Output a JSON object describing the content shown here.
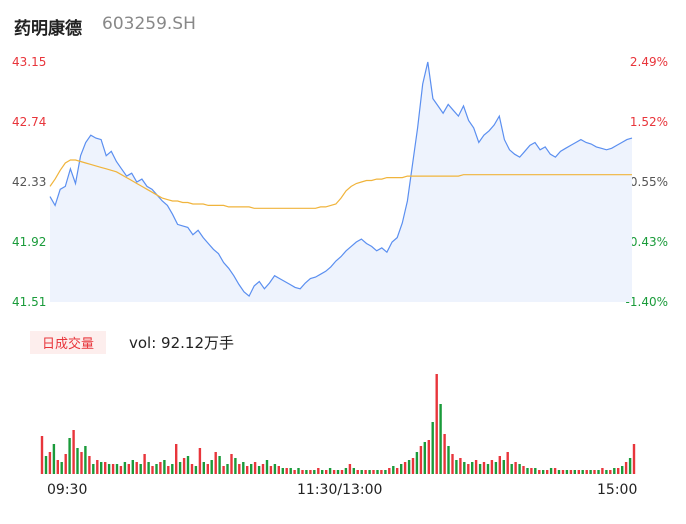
{
  "header": {
    "name": "药明康德",
    "code": "603259.SH"
  },
  "price_axis": {
    "ticks": [
      "43.15",
      "42.74",
      "42.33",
      "41.92",
      "41.51"
    ]
  },
  "pct_axis": {
    "ticks": [
      "2.49%",
      "1.52%",
      "0.55%",
      "-0.43%",
      "-1.40%"
    ]
  },
  "volume_panel": {
    "tag": "日成交量",
    "label": "vol: 92.12万手"
  },
  "time_axis": {
    "ticks": [
      "09:30",
      "11:30/13:00",
      "15:00"
    ]
  },
  "colors": {
    "price_line": "#5b8ff0",
    "avg_line": "#f0b43c",
    "up": "#e8353b",
    "down": "#1a9b3a",
    "area_fill": "#eef3fd"
  },
  "chart_data": [
    {
      "type": "line",
      "title": "",
      "ylim": [
        41.51,
        43.15
      ],
      "series": [
        {
          "name": "",
          "values": [
            42.23,
            42.17,
            42.28,
            42.3,
            42.42,
            42.32,
            42.51,
            42.6,
            42.65,
            42.63,
            42.62,
            42.51,
            42.54,
            42.47,
            42.42,
            42.37,
            42.39,
            42.33,
            42.35,
            42.3,
            42.28,
            42.24,
            42.2,
            42.17,
            42.11,
            42.04,
            42.03,
            42.02,
            41.97,
            42.0,
            41.95,
            41.91,
            41.87,
            41.84,
            41.78,
            41.74,
            41.69,
            41.63,
            41.58,
            41.55,
            41.62,
            41.65,
            41.6,
            41.64,
            41.69,
            41.67,
            41.65,
            41.63,
            41.61,
            41.6,
            41.64,
            41.67,
            41.68,
            41.7,
            41.72,
            41.75,
            41.79,
            41.82,
            41.86,
            41.89,
            41.92,
            41.94,
            41.91,
            41.89,
            41.86,
            41.88,
            41.85,
            41.92,
            41.95,
            42.05,
            42.2,
            42.45,
            42.7,
            43.0,
            43.15,
            42.9,
            42.85,
            42.8,
            42.86,
            42.82,
            42.78,
            42.85,
            42.75,
            42.7,
            42.6,
            42.65,
            42.68,
            42.72,
            42.78,
            42.62,
            42.55,
            42.52,
            42.5,
            42.54,
            42.58,
            42.6,
            42.55,
            42.57,
            42.52,
            42.5,
            42.54,
            42.56,
            42.58,
            42.6,
            42.62,
            42.6,
            42.59,
            42.57,
            42.56,
            42.55,
            42.56,
            42.58,
            42.6,
            42.62,
            42.63
          ]
        },
        {
          "name": "",
          "values": [
            42.3,
            42.35,
            42.41,
            42.46,
            42.48,
            42.48,
            42.47,
            42.46,
            42.45,
            42.44,
            42.43,
            42.42,
            42.41,
            42.4,
            42.38,
            42.36,
            42.34,
            42.32,
            42.3,
            42.28,
            42.26,
            42.24,
            42.22,
            42.21,
            42.2,
            42.2,
            42.19,
            42.19,
            42.18,
            42.18,
            42.18,
            42.17,
            42.17,
            42.17,
            42.17,
            42.16,
            42.16,
            42.16,
            42.16,
            42.16,
            42.15,
            42.15,
            42.15,
            42.15,
            42.15,
            42.15,
            42.15,
            42.15,
            42.15,
            42.15,
            42.15,
            42.15,
            42.15,
            42.16,
            42.16,
            42.17,
            42.18,
            42.22,
            42.27,
            42.3,
            42.32,
            42.33,
            42.34,
            42.34,
            42.35,
            42.35,
            42.36,
            42.36,
            42.36,
            42.36,
            42.37,
            42.37,
            42.37,
            42.37,
            42.37,
            42.37,
            42.37,
            42.37,
            42.37,
            42.37,
            42.37,
            42.38,
            42.38,
            42.38,
            42.38,
            42.38,
            42.38,
            42.38,
            42.38,
            42.38,
            42.38,
            42.38,
            42.38,
            42.38,
            42.38,
            42.38,
            42.38,
            42.38,
            42.38,
            42.38,
            42.38,
            42.38,
            42.38,
            42.38,
            42.38,
            42.38,
            42.38,
            42.38,
            42.38,
            42.38,
            42.38,
            42.38,
            42.38,
            42.38,
            42.38
          ]
        }
      ]
    },
    {
      "type": "bar",
      "title": "",
      "ylim": [
        0,
        100
      ],
      "values": [
        38,
        18,
        22,
        30,
        14,
        12,
        20,
        36,
        44,
        26,
        22,
        28,
        18,
        10,
        14,
        12,
        12,
        10,
        10,
        10,
        8,
        12,
        10,
        14,
        12,
        10,
        20,
        12,
        8,
        10,
        12,
        14,
        8,
        10,
        30,
        12,
        16,
        18,
        10,
        8,
        26,
        12,
        10,
        14,
        22,
        18,
        8,
        10,
        20,
        16,
        10,
        12,
        8,
        10,
        12,
        8,
        10,
        14,
        8,
        10,
        8,
        6,
        6,
        6,
        4,
        6,
        4,
        4,
        4,
        4,
        6,
        4,
        4,
        6,
        4,
        4,
        4,
        6,
        10,
        6,
        4,
        4,
        4,
        4,
        4,
        4,
        4,
        4,
        6,
        8,
        6,
        10,
        12,
        14,
        16,
        22,
        28,
        32,
        34,
        52,
        100,
        70,
        40,
        28,
        20,
        14,
        16,
        12,
        10,
        12,
        14,
        10,
        12,
        10,
        14,
        12,
        18,
        14,
        22,
        10,
        12,
        10,
        8,
        6,
        6,
        6,
        4,
        4,
        4,
        6,
        6,
        4,
        4,
        4,
        4,
        4,
        4,
        4,
        4,
        4,
        4,
        4,
        6,
        4,
        4,
        6,
        6,
        8,
        12,
        16,
        30
      ],
      "directions": "ugugugugugugugugugugugugugugugugugugugugugugugugugugugugugugugugugugugugugugugugugugugugugugugugugugugugugugugugugugugugugugugugugugugugugugugugugugugugugugugu"
    }
  ]
}
